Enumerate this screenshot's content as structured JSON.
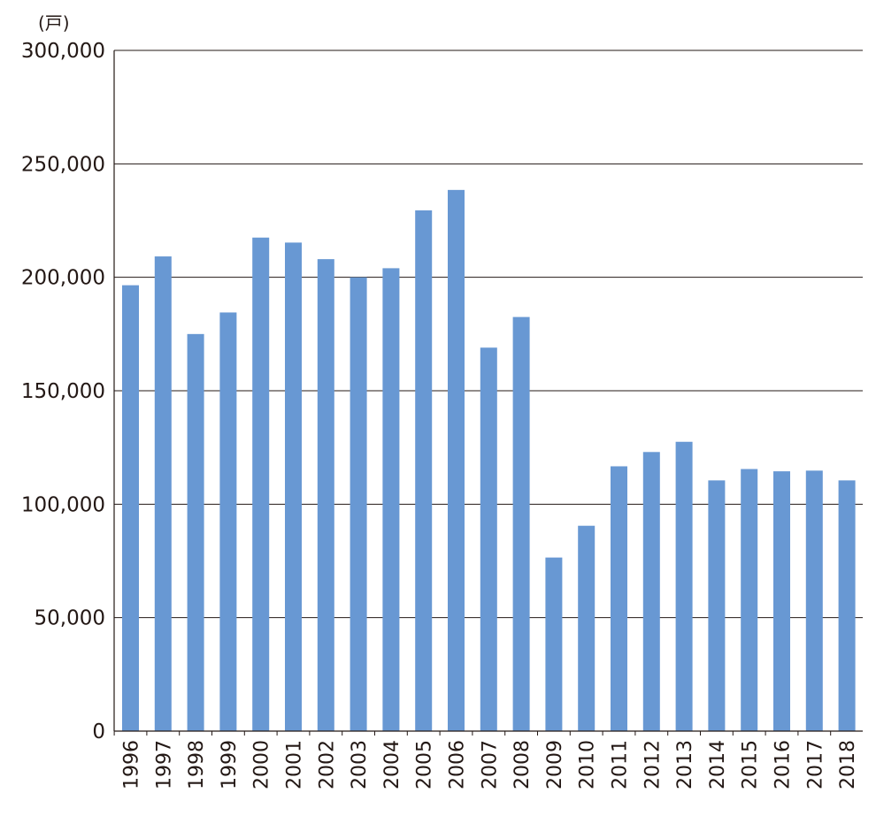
{
  "chart_data": {
    "type": "bar",
    "unit_label": "(戸)",
    "title": "",
    "xlabel": "",
    "ylabel": "",
    "categories": [
      "1996",
      "1997",
      "1998",
      "1999",
      "2000",
      "2001",
      "2002",
      "2003",
      "2004",
      "2005",
      "2006",
      "2007",
      "2008",
      "2009",
      "2010",
      "2011",
      "2012",
      "2013",
      "2014",
      "2015",
      "2016",
      "2017",
      "2018"
    ],
    "values": [
      196500,
      209200,
      175000,
      184500,
      217500,
      215300,
      208000,
      200000,
      204000,
      229500,
      238500,
      169000,
      182500,
      76500,
      90500,
      116700,
      123000,
      127500,
      110500,
      115500,
      114500,
      114800,
      110500
    ],
    "ylim": [
      0,
      300000
    ],
    "yticks": [
      0,
      50000,
      100000,
      150000,
      200000,
      250000,
      300000
    ],
    "ytick_labels": [
      "0",
      "50,000",
      "100,000",
      "150,000",
      "200,000",
      "250,000",
      "300,000"
    ],
    "grid": true,
    "bar_color": "#6898d3",
    "grid_color": "#231815",
    "legend": "none"
  }
}
